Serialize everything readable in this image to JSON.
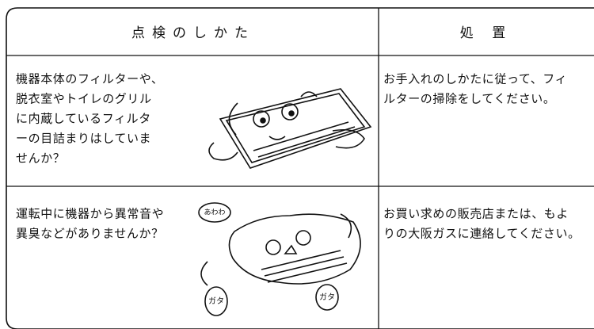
{
  "header": {
    "check": "点検のしかた",
    "action": "処 置"
  },
  "rows": [
    {
      "check": [
        "機器本体のフィルターや、",
        "脱衣室やトイレのグリル",
        "に内蔵しているフィルタ",
        "ーの目詰まりはしていま",
        "せんか？"
      ],
      "action": [
        "お手入れのしかたに従って、フィ",
        "ルターの掃除をしてください。"
      ]
    },
    {
      "check": [
        "運転中に機器から異常音や",
        "異臭などがありませんか？"
      ],
      "action": [
        "お買い求めの販売店または、もよ",
        "りの大阪ガスに連絡してください。"
      ],
      "bubbles": [
        "あわわ",
        "ガタ",
        "ガタ"
      ]
    }
  ]
}
